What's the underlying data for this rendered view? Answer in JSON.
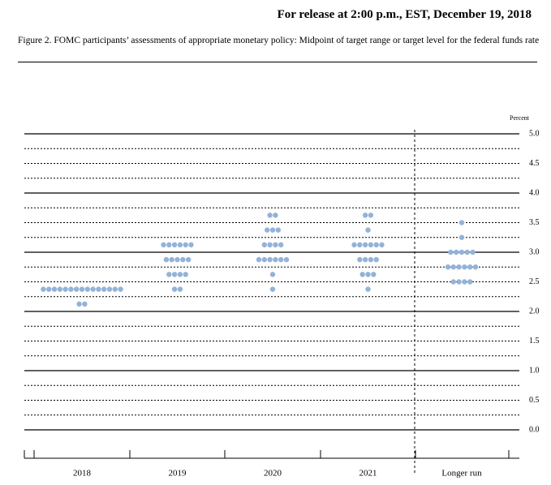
{
  "header": "For release at 2:00 p.m., EST, December 19, 2018",
  "chart_data": {
    "type": "dot",
    "title": "Figure 2. FOMC participants’ assessments of appropriate monetary policy: Midpoint of target range or target level for the federal funds rate",
    "y_label": "Percent",
    "categories": [
      "2018",
      "2019",
      "2020",
      "2021",
      "Longer run"
    ],
    "color": "#93b3d8",
    "dots": [
      [
        {
          "value": 2.375,
          "count": 15
        },
        {
          "value": 2.125,
          "count": 2
        }
      ],
      [
        {
          "value": 3.125,
          "count": 6
        },
        {
          "value": 2.875,
          "count": 5
        },
        {
          "value": 2.625,
          "count": 4
        },
        {
          "value": 2.375,
          "count": 2
        }
      ],
      [
        {
          "value": 3.625,
          "count": 2
        },
        {
          "value": 3.375,
          "count": 3
        },
        {
          "value": 3.125,
          "count": 4
        },
        {
          "value": 2.875,
          "count": 6
        },
        {
          "value": 2.625,
          "count": 1
        },
        {
          "value": 2.375,
          "count": 1
        }
      ],
      [
        {
          "value": 3.625,
          "count": 2
        },
        {
          "value": 3.375,
          "count": 1
        },
        {
          "value": 3.125,
          "count": 6
        },
        {
          "value": 2.875,
          "count": 4
        },
        {
          "value": 2.625,
          "count": 3
        },
        {
          "value": 2.375,
          "count": 1
        }
      ],
      [
        {
          "value": 3.5,
          "count": 1
        },
        {
          "value": 3.25,
          "count": 1
        },
        {
          "value": 3.0,
          "count": 5
        },
        {
          "value": 2.75,
          "count": 6
        },
        {
          "value": 2.5,
          "count": 4
        }
      ]
    ],
    "ylim": [
      0,
      5
    ],
    "yticks": [
      {
        "value": 0,
        "label": "0.0"
      },
      {
        "value": 0.5,
        "label": "0.5"
      },
      {
        "value": 1,
        "label": "1.0"
      },
      {
        "value": 1.5,
        "label": "1.5"
      },
      {
        "value": 2,
        "label": "2.0"
      },
      {
        "value": 2.5,
        "label": "2.5"
      },
      {
        "value": 3,
        "label": "3.0"
      },
      {
        "value": 3.5,
        "label": "3.5"
      },
      {
        "value": 4,
        "label": "4.0"
      },
      {
        "value": 4.5,
        "label": "4.5"
      },
      {
        "value": 5,
        "label": "5.0"
      }
    ],
    "minor_yticks": [
      0.25,
      0.75,
      1.25,
      1.75,
      2.25,
      2.75,
      3.25,
      3.75,
      4.25,
      4.75
    ],
    "grid": true
  }
}
